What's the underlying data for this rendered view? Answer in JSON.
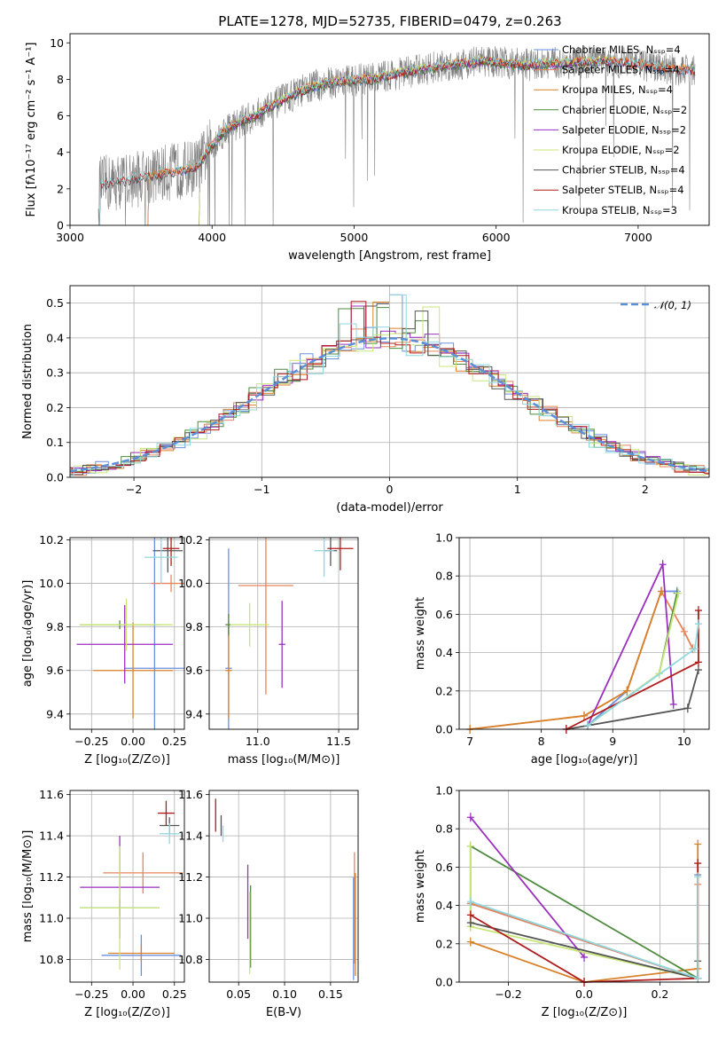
{
  "figure_title": "PLATE=1278, MJD=52735, FIBERID=0479, z=0.263",
  "colors": {
    "Chabrier MILES": "#6a8fe0",
    "Salpeter MILES": "#e8835c",
    "Kroupa MILES": "#d9822b",
    "Chabrier ELODIE": "#4f8a3f",
    "Salpeter ELODIE": "#9b2fbf",
    "Kroupa ELODIE": "#c9e67a",
    "Chabrier STELIB": "#555555",
    "Salpeter STELIB": "#b01c1c",
    "Kroupa STELIB": "#8fd8de",
    "grey_data": "#808080",
    "normal_curve": "#5b8fd6"
  },
  "chart_data": [
    {
      "id": "spectrum",
      "type": "line",
      "title": "PLATE=1278, MJD=52735, FIBERID=0479, z=0.263",
      "xlabel": "wavelength [Angstrom, rest frame]",
      "ylabel": "Flux [fλ10⁻¹⁷ erg cm⁻² s⁻¹ A⁻¹]",
      "xlim": [
        3000,
        7500
      ],
      "ylim": [
        0,
        10.5
      ],
      "xticks": [
        "3000",
        "4000",
        "5000",
        "6000",
        "7000"
      ],
      "yticks": [
        "0",
        "2",
        "4",
        "6",
        "8",
        "10"
      ],
      "legend_loc": "upper-right",
      "continuum": [
        [
          3200,
          2.2
        ],
        [
          3500,
          2.6
        ],
        [
          3700,
          2.9
        ],
        [
          3900,
          3.2
        ],
        [
          3980,
          4.2
        ],
        [
          4100,
          5.3
        ],
        [
          4300,
          6.0
        ],
        [
          4500,
          6.9
        ],
        [
          4700,
          7.6
        ],
        [
          4900,
          7.9
        ],
        [
          5100,
          8.0
        ],
        [
          5300,
          8.3
        ],
        [
          5600,
          8.7
        ],
        [
          5900,
          9.0
        ],
        [
          6200,
          8.8
        ],
        [
          6500,
          8.9
        ],
        [
          6800,
          9.0
        ],
        [
          7100,
          8.7
        ],
        [
          7300,
          8.5
        ]
      ],
      "series": [
        {
          "name": "Chabrier MILES, N_SSP=4",
          "start": 3540,
          "end": 7400
        },
        {
          "name": "Salpeter MILES, N_SSP=4",
          "start": 3540,
          "end": 7400
        },
        {
          "name": "Kroupa MILES, N_SSP=4",
          "start": 3540,
          "end": 7400
        },
        {
          "name": "Chabrier ELODIE, N_SSP=2",
          "start": 3900,
          "end": 6800
        },
        {
          "name": "Salpeter ELODIE, N_SSP=2",
          "start": 3900,
          "end": 6800
        },
        {
          "name": "Kroupa ELODIE, N_SSP=2",
          "start": 3900,
          "end": 6800
        },
        {
          "name": "Chabrier STELIB, N_SSP=4",
          "start": 3200,
          "end": 7400
        },
        {
          "name": "Salpeter STELIB, N_SSP=4",
          "start": 3200,
          "end": 7400
        },
        {
          "name": "Kroupa STELIB, N_SSP=3",
          "start": 3200,
          "end": 7400
        }
      ]
    },
    {
      "id": "residuals",
      "type": "line",
      "xlabel": "(data-model)/error",
      "ylabel": "Normed distribution",
      "xlim": [
        -2.5,
        2.5
      ],
      "ylim": [
        0,
        0.55
      ],
      "xticks": [
        "−2",
        "−1",
        "0",
        "1",
        "2"
      ],
      "yticks": [
        "0.0",
        "0.1",
        "0.2",
        "0.3",
        "0.4",
        "0.5"
      ],
      "legend": "𝒩(0, 1)",
      "legend_loc": "upper-right",
      "grid": true,
      "normal_mean": 0,
      "normal_sigma": 1
    },
    {
      "id": "age_vs_Z",
      "type": "scatter",
      "xlabel": "Z [log₁₀(Z/Z⊙)]",
      "ylabel": "age  [log₁₀(age/yr)]",
      "xlim": [
        -0.38,
        0.31
      ],
      "ylim": [
        9.33,
        10.21
      ],
      "xticks": [
        {
          "v": -0.25,
          "t": "−0.25"
        },
        {
          "v": 0,
          "t": "0.00"
        },
        {
          "v": 0.25,
          "t": "0.25"
        }
      ],
      "yticks": [
        {
          "v": 9.4,
          "t": "9.4"
        },
        {
          "v": 9.6,
          "t": "9.6"
        },
        {
          "v": 9.8,
          "t": "9.8"
        },
        {
          "v": 10.0,
          "t": "10.0"
        },
        {
          "v": 10.2,
          "t": "10.2"
        }
      ],
      "grid": true,
      "points": [
        {
          "s": 0,
          "x": 0.13,
          "xe": 0.18,
          "y": 9.61,
          "ye": 0.6
        },
        {
          "s": 1,
          "x": 0.23,
          "xe": 0.12,
          "y": 10.0,
          "ye": 0.04
        },
        {
          "s": 2,
          "x": 0.0,
          "xe": 0.24,
          "y": 9.6,
          "ye": 0.22
        },
        {
          "s": 3,
          "x": -0.08,
          "xe": 0.24,
          "y": 9.81,
          "ye": 0.02
        },
        {
          "s": 4,
          "x": -0.05,
          "xe": 0.29,
          "y": 9.72,
          "ye": 0.18
        },
        {
          "s": 5,
          "x": -0.04,
          "xe": 0.28,
          "y": 9.81,
          "ye": 0.12
        },
        {
          "s": 6,
          "x": 0.21,
          "xe": 0.09,
          "y": 10.15,
          "ye": 0.1
        },
        {
          "s": 7,
          "x": 0.23,
          "xe": 0.05,
          "y": 10.16,
          "ye": 0.08
        },
        {
          "s": 8,
          "x": 0.17,
          "xe": 0.1,
          "y": 10.12,
          "ye": 0.12
        }
      ]
    },
    {
      "id": "age_vs_mass",
      "type": "scatter",
      "xlabel": "mass [log₁₀(M/M⊙)]",
      "ylabel": "",
      "xlim": [
        10.7,
        11.62
      ],
      "ylim": [
        9.33,
        10.21
      ],
      "xticks": [
        {
          "v": 11.0,
          "t": "11.0"
        },
        {
          "v": 11.5,
          "t": "11.5"
        }
      ],
      "yticks": [
        {
          "v": 9.4,
          "t": "9.4"
        },
        {
          "v": 9.6,
          "t": "9.6"
        },
        {
          "v": 9.8,
          "t": "9.8"
        },
        {
          "v": 10.0,
          "t": "10.0"
        },
        {
          "v": 10.2,
          "t": "10.2"
        }
      ],
      "grid": true,
      "points": [
        {
          "s": 0,
          "x": 10.82,
          "xe": 0.02,
          "y": 9.61,
          "ye": 0.55
        },
        {
          "s": 1,
          "x": 11.05,
          "xe": 0.17,
          "y": 9.99,
          "ye": 0.5
        },
        {
          "s": 2,
          "x": 10.82,
          "xe": 0.02,
          "y": 9.6,
          "ye": 0.22
        },
        {
          "s": 3,
          "x": 10.82,
          "xe": 0.02,
          "y": 9.81,
          "ye": 0.05
        },
        {
          "s": 4,
          "x": 11.15,
          "xe": 0.02,
          "y": 9.72,
          "ye": 0.2
        },
        {
          "s": 5,
          "x": 10.95,
          "xe": 0.12,
          "y": 9.81,
          "ye": 0.1
        },
        {
          "s": 6,
          "x": 11.45,
          "xe": 0.04,
          "y": 10.15,
          "ye": 0.07
        },
        {
          "s": 7,
          "x": 11.51,
          "xe": 0.08,
          "y": 10.16,
          "ye": 0.1
        },
        {
          "s": 8,
          "x": 11.41,
          "xe": 0.06,
          "y": 10.15,
          "ye": 0.12
        }
      ]
    },
    {
      "id": "weight_vs_age",
      "type": "line",
      "xlabel": "age  [log₁₀(age/yr)]",
      "ylabel": "mass weight",
      "xlim": [
        6.85,
        10.35
      ],
      "ylim": [
        0,
        1.0
      ],
      "xticks": [
        {
          "v": 7,
          "t": "7"
        },
        {
          "v": 8,
          "t": "8"
        },
        {
          "v": 9,
          "t": "9"
        },
        {
          "v": 10,
          "t": "10"
        }
      ],
      "yticks": [
        {
          "v": 0,
          "t": "0.0"
        },
        {
          "v": 0.2,
          "t": "0.2"
        },
        {
          "v": 0.4,
          "t": "0.4"
        },
        {
          "v": 0.6,
          "t": "0.6"
        },
        {
          "v": 0.8,
          "t": "0.8"
        },
        {
          "v": 1.0,
          "t": "1.0"
        }
      ],
      "grid": true,
      "series": [
        {
          "s": 0,
          "points": [
            [
              8.65,
              0.02
            ],
            [
              9.2,
              0.2
            ],
            [
              9.68,
              0.72
            ],
            [
              9.9,
              0.72
            ]
          ]
        },
        {
          "s": 1,
          "points": [
            [
              7.0,
              0.0
            ],
            [
              8.6,
              0.07
            ],
            [
              9.2,
              0.2
            ],
            [
              9.68,
              0.72
            ],
            [
              10.0,
              0.51
            ],
            [
              10.12,
              0.42
            ]
          ]
        },
        {
          "s": 2,
          "points": [
            [
              7.0,
              0.0
            ],
            [
              8.6,
              0.07
            ],
            [
              9.2,
              0.2
            ],
            [
              9.68,
              0.72
            ]
          ]
        },
        {
          "s": 3,
          "points": [
            [
              8.65,
              0.02
            ],
            [
              9.65,
              0.29
            ],
            [
              9.9,
              0.71
            ]
          ]
        },
        {
          "s": 4,
          "points": [
            [
              8.65,
              0.02
            ],
            [
              9.7,
              0.86
            ],
            [
              9.85,
              0.13
            ]
          ]
        },
        {
          "s": 5,
          "points": [
            [
              8.65,
              0.02
            ],
            [
              9.65,
              0.29
            ],
            [
              9.92,
              0.71
            ]
          ]
        },
        {
          "s": 6,
          "points": [
            [
              8.35,
              0.0
            ],
            [
              10.05,
              0.11
            ],
            [
              10.2,
              0.31
            ]
          ]
        },
        {
          "s": 7,
          "points": [
            [
              8.35,
              0.0
            ],
            [
              10.2,
              0.35
            ],
            [
              10.2,
              0.62
            ]
          ]
        },
        {
          "s": 8,
          "points": [
            [
              8.65,
              0.02
            ],
            [
              10.15,
              0.42
            ],
            [
              10.2,
              0.55
            ]
          ]
        }
      ]
    },
    {
      "id": "mass_vs_Z",
      "type": "scatter",
      "xlabel": "Z [log₁₀(Z/Z⊙)]",
      "ylabel": "mass [log₁₀(M/M⊙)]",
      "xlim": [
        -0.38,
        0.31
      ],
      "ylim": [
        10.69,
        11.62
      ],
      "xticks": [
        {
          "v": -0.25,
          "t": "−0.25"
        },
        {
          "v": 0,
          "t": "0.00"
        },
        {
          "v": 0.25,
          "t": "0.25"
        }
      ],
      "yticks": [
        {
          "v": 10.8,
          "t": "10.8"
        },
        {
          "v": 11.0,
          "t": "11.0"
        },
        {
          "v": 11.2,
          "t": "11.2"
        },
        {
          "v": 11.4,
          "t": "11.4"
        },
        {
          "v": 11.6,
          "t": "11.6"
        }
      ],
      "grid": true,
      "points": [
        {
          "s": 0,
          "x": 0.05,
          "xe": 0.24,
          "y": 10.82,
          "ye": 0.1
        },
        {
          "s": 1,
          "x": 0.06,
          "xe": 0.24,
          "y": 11.22,
          "ye": 0.1
        },
        {
          "s": 2,
          "x": 0.05,
          "xe": 0.2,
          "y": 10.83,
          "ye": 0.04
        },
        {
          "s": 3,
          "x": -0.08,
          "xe": 0.24,
          "y": 11.05,
          "ye": 0.04
        },
        {
          "s": 4,
          "x": -0.08,
          "xe": 0.24,
          "y": 11.15,
          "ye": 0.25
        },
        {
          "s": 5,
          "x": -0.08,
          "xe": 0.24,
          "y": 11.05,
          "ye": 0.3
        },
        {
          "s": 6,
          "x": 0.22,
          "xe": 0.06,
          "y": 11.45,
          "ye": 0.04
        },
        {
          "s": 7,
          "x": 0.2,
          "xe": 0.05,
          "y": 11.51,
          "ye": 0.06
        },
        {
          "s": 8,
          "x": 0.22,
          "xe": 0.06,
          "y": 11.41,
          "ye": 0.05
        }
      ]
    },
    {
      "id": "mass_vs_EBV",
      "type": "scatter",
      "xlabel": "E(B-V)",
      "ylabel": "",
      "xlim": [
        0.018,
        0.18
      ],
      "ylim": [
        10.69,
        11.62
      ],
      "xticks": [
        {
          "v": 0.05,
          "t": "0.05"
        },
        {
          "v": 0.1,
          "t": "0.10"
        },
        {
          "v": 0.15,
          "t": "0.15"
        }
      ],
      "yticks": [
        {
          "v": 10.8,
          "t": "10.8"
        },
        {
          "v": 11.0,
          "t": "11.0"
        },
        {
          "v": 11.2,
          "t": "11.2"
        },
        {
          "v": 11.4,
          "t": "11.4"
        },
        {
          "v": 11.6,
          "t": "11.6"
        }
      ],
      "grid": true,
      "points": [
        {
          "s": 0,
          "x": 0.175,
          "xe": 0,
          "y": 10.95,
          "ye": 0.25
        },
        {
          "s": 1,
          "x": 0.176,
          "xe": 0,
          "y": 11.05,
          "ye": 0.27
        },
        {
          "s": 2,
          "x": 0.177,
          "xe": 0,
          "y": 10.97,
          "ye": 0.25
        },
        {
          "s": 3,
          "x": 0.063,
          "xe": 0,
          "y": 10.96,
          "ye": 0.2
        },
        {
          "s": 4,
          "x": 0.06,
          "xe": 0,
          "y": 11.08,
          "ye": 0.18
        },
        {
          "s": 5,
          "x": 0.062,
          "xe": 0,
          "y": 10.93,
          "ye": 0.2
        },
        {
          "s": 6,
          "x": 0.031,
          "xe": 0,
          "y": 11.45,
          "ye": 0.05
        },
        {
          "s": 7,
          "x": 0.025,
          "xe": 0,
          "y": 11.5,
          "ye": 0.08
        },
        {
          "s": 8,
          "x": 0.033,
          "xe": 0,
          "y": 11.41,
          "ye": 0.04
        }
      ]
    },
    {
      "id": "weight_vs_Z",
      "type": "line",
      "xlabel": "Z [log₁₀(Z/Z⊙)]",
      "ylabel": "mass weight",
      "xlim": [
        -0.33,
        0.33
      ],
      "ylim": [
        0,
        1.0
      ],
      "xticks": [
        {
          "v": -0.2,
          "t": "−0.2"
        },
        {
          "v": 0,
          "t": "0.0"
        },
        {
          "v": 0.2,
          "t": "0.2"
        }
      ],
      "yticks": [
        {
          "v": 0,
          "t": "0.0"
        },
        {
          "v": 0.2,
          "t": "0.2"
        },
        {
          "v": 0.4,
          "t": "0.4"
        },
        {
          "v": 0.6,
          "t": "0.6"
        },
        {
          "v": 0.8,
          "t": "0.8"
        },
        {
          "v": 1.0,
          "t": "1.0"
        }
      ],
      "grid": true,
      "series": [
        {
          "s": 0,
          "points": [
            [
              -0.3,
              0.41
            ],
            [
              0.3,
              0.02
            ],
            [
              0.3,
              0.56
            ]
          ]
        },
        {
          "s": 1,
          "points": [
            [
              -0.3,
              0.41
            ],
            [
              0.3,
              0.02
            ],
            [
              0.3,
              0.51
            ]
          ]
        },
        {
          "s": 2,
          "points": [
            [
              -0.3,
              0.21
            ],
            [
              0.0,
              0.0
            ],
            [
              0.3,
              0.07
            ],
            [
              0.3,
              0.72
            ]
          ]
        },
        {
          "s": 3,
          "points": [
            [
              -0.3,
              0.29
            ],
            [
              -0.3,
              0.71
            ],
            [
              0.3,
              0.02
            ]
          ]
        },
        {
          "s": 4,
          "points": [
            [
              -0.3,
              0.86
            ],
            [
              0.0,
              0.13
            ]
          ]
        },
        {
          "s": 5,
          "points": [
            [
              -0.3,
              0.71
            ],
            [
              -0.3,
              0.29
            ],
            [
              0.3,
              0.02
            ]
          ]
        },
        {
          "s": 6,
          "points": [
            [
              -0.3,
              0.31
            ],
            [
              0.3,
              0.02
            ],
            [
              0.3,
              0.11
            ]
          ]
        },
        {
          "s": 7,
          "points": [
            [
              -0.3,
              0.35
            ],
            [
              0.0,
              0.0
            ],
            [
              0.3,
              0.02
            ],
            [
              0.3,
              0.62
            ]
          ]
        },
        {
          "s": 8,
          "points": [
            [
              -0.3,
              0.42
            ],
            [
              0.3,
              0.02
            ],
            [
              0.3,
              0.55
            ]
          ]
        }
      ]
    }
  ]
}
